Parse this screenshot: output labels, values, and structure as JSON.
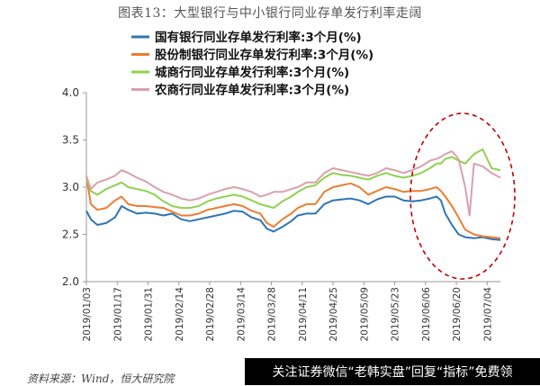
{
  "figure_title": "图表13：大型银行与中小银行同业存单发行利率走阔",
  "source_note": "资料来源：Wind，恒大研究院",
  "watermark": "关注证券微信“老韩实盘”回复“指标”免费领",
  "chart_data": {
    "type": "line",
    "title": "图表13：大型银行与中小银行同业存单发行利率走阔",
    "xlabel": "",
    "ylabel": "",
    "ylim": [
      2.0,
      4.0
    ],
    "yticks": [
      2.0,
      2.5,
      3.0,
      3.5,
      4.0
    ],
    "ytick_labels": [
      "2.0",
      "2.5",
      "3.0",
      "3.5",
      "4.0"
    ],
    "xlim": [
      "2019/01/03",
      "2019/07/10"
    ],
    "xtick_labels": [
      "2019/01/03",
      "2019/01/17",
      "2019/01/31",
      "2019/02/14",
      "2019/02/28",
      "2019/03/14",
      "2019/03/28",
      "2019/04/11",
      "2019/04/25",
      "2019/05/09",
      "2019/05/23",
      "2019/06/06",
      "2019/06/20",
      "2019/07/04"
    ],
    "grid": false,
    "legend_position": "top-left",
    "annotation": "red dashed ellipse highlighting June–July widening",
    "series": [
      {
        "name": "国有银行同业存单发行利率:3个月(%)",
        "color": "#2e75b6",
        "points": [
          [
            "2019/01/03",
            2.75
          ],
          [
            "2019/01/05",
            2.66
          ],
          [
            "2019/01/08",
            2.6
          ],
          [
            "2019/01/12",
            2.62
          ],
          [
            "2019/01/16",
            2.68
          ],
          [
            "2019/01/19",
            2.8
          ],
          [
            "2019/01/22",
            2.76
          ],
          [
            "2019/01/26",
            2.72
          ],
          [
            "2019/01/30",
            2.73
          ],
          [
            "2019/02/03",
            2.72
          ],
          [
            "2019/02/07",
            2.7
          ],
          [
            "2019/02/11",
            2.72
          ],
          [
            "2019/02/15",
            2.66
          ],
          [
            "2019/02/19",
            2.64
          ],
          [
            "2019/02/23",
            2.66
          ],
          [
            "2019/02/27",
            2.68
          ],
          [
            "2019/03/03",
            2.7
          ],
          [
            "2019/03/07",
            2.72
          ],
          [
            "2019/03/11",
            2.75
          ],
          [
            "2019/03/15",
            2.74
          ],
          [
            "2019/03/19",
            2.68
          ],
          [
            "2019/03/23",
            2.65
          ],
          [
            "2019/03/26",
            2.56
          ],
          [
            "2019/03/29",
            2.53
          ],
          [
            "2019/04/02",
            2.58
          ],
          [
            "2019/04/06",
            2.64
          ],
          [
            "2019/04/09",
            2.7
          ],
          [
            "2019/04/13",
            2.72
          ],
          [
            "2019/04/17",
            2.72
          ],
          [
            "2019/04/21",
            2.82
          ],
          [
            "2019/04/25",
            2.86
          ],
          [
            "2019/04/29",
            2.87
          ],
          [
            "2019/05/03",
            2.88
          ],
          [
            "2019/05/07",
            2.86
          ],
          [
            "2019/05/11",
            2.82
          ],
          [
            "2019/05/15",
            2.87
          ],
          [
            "2019/05/19",
            2.9
          ],
          [
            "2019/05/23",
            2.9
          ],
          [
            "2019/05/27",
            2.86
          ],
          [
            "2019/05/31",
            2.85
          ],
          [
            "2019/06/04",
            2.86
          ],
          [
            "2019/06/08",
            2.88
          ],
          [
            "2019/06/11",
            2.9
          ],
          [
            "2019/06/13",
            2.86
          ],
          [
            "2019/06/15",
            2.72
          ],
          [
            "2019/06/18",
            2.6
          ],
          [
            "2019/06/21",
            2.5
          ],
          [
            "2019/06/24",
            2.47
          ],
          [
            "2019/06/28",
            2.46
          ],
          [
            "2019/07/02",
            2.47
          ],
          [
            "2019/07/06",
            2.45
          ],
          [
            "2019/07/10",
            2.44
          ]
        ]
      },
      {
        "name": "股份制银行同业存单发行利率:3个月(%)",
        "color": "#ed7d31",
        "points": [
          [
            "2019/01/03",
            3.12
          ],
          [
            "2019/01/05",
            2.82
          ],
          [
            "2019/01/08",
            2.76
          ],
          [
            "2019/01/12",
            2.78
          ],
          [
            "2019/01/16",
            2.86
          ],
          [
            "2019/01/19",
            2.9
          ],
          [
            "2019/01/22",
            2.82
          ],
          [
            "2019/01/26",
            2.8
          ],
          [
            "2019/01/30",
            2.8
          ],
          [
            "2019/02/03",
            2.79
          ],
          [
            "2019/02/07",
            2.78
          ],
          [
            "2019/02/11",
            2.74
          ],
          [
            "2019/02/15",
            2.7
          ],
          [
            "2019/02/19",
            2.7
          ],
          [
            "2019/02/23",
            2.72
          ],
          [
            "2019/02/27",
            2.76
          ],
          [
            "2019/03/03",
            2.78
          ],
          [
            "2019/03/07",
            2.8
          ],
          [
            "2019/03/11",
            2.82
          ],
          [
            "2019/03/15",
            2.8
          ],
          [
            "2019/03/19",
            2.75
          ],
          [
            "2019/03/23",
            2.72
          ],
          [
            "2019/03/26",
            2.62
          ],
          [
            "2019/03/29",
            2.58
          ],
          [
            "2019/04/02",
            2.66
          ],
          [
            "2019/04/06",
            2.72
          ],
          [
            "2019/04/09",
            2.78
          ],
          [
            "2019/04/13",
            2.82
          ],
          [
            "2019/04/17",
            2.82
          ],
          [
            "2019/04/21",
            2.95
          ],
          [
            "2019/04/25",
            3.0
          ],
          [
            "2019/04/29",
            3.02
          ],
          [
            "2019/05/03",
            3.04
          ],
          [
            "2019/05/07",
            3.0
          ],
          [
            "2019/05/11",
            2.92
          ],
          [
            "2019/05/15",
            2.96
          ],
          [
            "2019/05/19",
            3.0
          ],
          [
            "2019/05/23",
            2.98
          ],
          [
            "2019/05/27",
            2.95
          ],
          [
            "2019/05/31",
            2.96
          ],
          [
            "2019/06/04",
            2.96
          ],
          [
            "2019/06/08",
            2.98
          ],
          [
            "2019/06/11",
            3.0
          ],
          [
            "2019/06/13",
            2.96
          ],
          [
            "2019/06/15",
            2.9
          ],
          [
            "2019/06/18",
            2.8
          ],
          [
            "2019/06/21",
            2.68
          ],
          [
            "2019/06/24",
            2.55
          ],
          [
            "2019/06/28",
            2.5
          ],
          [
            "2019/07/02",
            2.48
          ],
          [
            "2019/07/06",
            2.47
          ],
          [
            "2019/07/10",
            2.46
          ]
        ]
      },
      {
        "name": "城商行同业存单发行利率:3个月(%)",
        "color": "#8fd14f",
        "points": [
          [
            "2019/01/03",
            3.1
          ],
          [
            "2019/01/05",
            2.96
          ],
          [
            "2019/01/08",
            2.92
          ],
          [
            "2019/01/12",
            2.98
          ],
          [
            "2019/01/16",
            3.02
          ],
          [
            "2019/01/19",
            3.05
          ],
          [
            "2019/01/22",
            3.0
          ],
          [
            "2019/01/26",
            2.98
          ],
          [
            "2019/01/30",
            2.96
          ],
          [
            "2019/02/03",
            2.92
          ],
          [
            "2019/02/07",
            2.85
          ],
          [
            "2019/02/11",
            2.8
          ],
          [
            "2019/02/15",
            2.78
          ],
          [
            "2019/02/19",
            2.78
          ],
          [
            "2019/02/23",
            2.8
          ],
          [
            "2019/02/27",
            2.85
          ],
          [
            "2019/03/03",
            2.88
          ],
          [
            "2019/03/07",
            2.9
          ],
          [
            "2019/03/11",
            2.92
          ],
          [
            "2019/03/15",
            2.9
          ],
          [
            "2019/03/19",
            2.86
          ],
          [
            "2019/03/23",
            2.82
          ],
          [
            "2019/03/26",
            2.8
          ],
          [
            "2019/03/29",
            2.78
          ],
          [
            "2019/04/02",
            2.85
          ],
          [
            "2019/04/06",
            2.9
          ],
          [
            "2019/04/09",
            2.95
          ],
          [
            "2019/04/13",
            3.0
          ],
          [
            "2019/04/17",
            3.02
          ],
          [
            "2019/04/21",
            3.1
          ],
          [
            "2019/04/25",
            3.15
          ],
          [
            "2019/04/29",
            3.13
          ],
          [
            "2019/05/03",
            3.12
          ],
          [
            "2019/05/07",
            3.1
          ],
          [
            "2019/05/11",
            3.08
          ],
          [
            "2019/05/15",
            3.12
          ],
          [
            "2019/05/19",
            3.15
          ],
          [
            "2019/05/23",
            3.12
          ],
          [
            "2019/05/27",
            3.1
          ],
          [
            "2019/05/31",
            3.12
          ],
          [
            "2019/06/04",
            3.15
          ],
          [
            "2019/06/08",
            3.2
          ],
          [
            "2019/06/11",
            3.25
          ],
          [
            "2019/06/13",
            3.25
          ],
          [
            "2019/06/15",
            3.3
          ],
          [
            "2019/06/18",
            3.32
          ],
          [
            "2019/06/21",
            3.28
          ],
          [
            "2019/06/24",
            3.25
          ],
          [
            "2019/06/28",
            3.35
          ],
          [
            "2019/07/02",
            3.4
          ],
          [
            "2019/07/06",
            3.2
          ],
          [
            "2019/07/10",
            3.18
          ]
        ]
      },
      {
        "name": "农商行同业存单发行利率:3个月(%)",
        "color": "#d9a0ac",
        "points": [
          [
            "2019/01/03",
            3.12
          ],
          [
            "2019/01/05",
            2.98
          ],
          [
            "2019/01/08",
            3.05
          ],
          [
            "2019/01/12",
            3.08
          ],
          [
            "2019/01/16",
            3.12
          ],
          [
            "2019/01/19",
            3.18
          ],
          [
            "2019/01/22",
            3.15
          ],
          [
            "2019/01/26",
            3.1
          ],
          [
            "2019/01/30",
            3.06
          ],
          [
            "2019/02/03",
            3.0
          ],
          [
            "2019/02/07",
            2.95
          ],
          [
            "2019/02/11",
            2.92
          ],
          [
            "2019/02/15",
            2.88
          ],
          [
            "2019/02/19",
            2.86
          ],
          [
            "2019/02/23",
            2.88
          ],
          [
            "2019/02/27",
            2.92
          ],
          [
            "2019/03/03",
            2.95
          ],
          [
            "2019/03/07",
            2.98
          ],
          [
            "2019/03/11",
            3.0
          ],
          [
            "2019/03/15",
            2.98
          ],
          [
            "2019/03/19",
            2.95
          ],
          [
            "2019/03/23",
            2.9
          ],
          [
            "2019/03/26",
            2.92
          ],
          [
            "2019/03/29",
            2.95
          ],
          [
            "2019/04/02",
            2.95
          ],
          [
            "2019/04/06",
            2.98
          ],
          [
            "2019/04/09",
            3.0
          ],
          [
            "2019/04/13",
            3.05
          ],
          [
            "2019/04/17",
            3.05
          ],
          [
            "2019/04/21",
            3.15
          ],
          [
            "2019/04/25",
            3.2
          ],
          [
            "2019/04/29",
            3.18
          ],
          [
            "2019/05/03",
            3.16
          ],
          [
            "2019/05/07",
            3.14
          ],
          [
            "2019/05/11",
            3.12
          ],
          [
            "2019/05/15",
            3.15
          ],
          [
            "2019/05/19",
            3.2
          ],
          [
            "2019/05/23",
            3.18
          ],
          [
            "2019/05/27",
            3.15
          ],
          [
            "2019/05/31",
            3.18
          ],
          [
            "2019/06/04",
            3.22
          ],
          [
            "2019/06/08",
            3.28
          ],
          [
            "2019/06/11",
            3.3
          ],
          [
            "2019/06/13",
            3.32
          ],
          [
            "2019/06/15",
            3.35
          ],
          [
            "2019/06/18",
            3.38
          ],
          [
            "2019/06/21",
            3.3
          ],
          [
            "2019/06/24",
            3.0
          ],
          [
            "2019/06/26",
            2.7
          ],
          [
            "2019/06/28",
            3.25
          ],
          [
            "2019/07/02",
            3.22
          ],
          [
            "2019/07/06",
            3.15
          ],
          [
            "2019/07/10",
            3.1
          ]
        ]
      }
    ]
  }
}
